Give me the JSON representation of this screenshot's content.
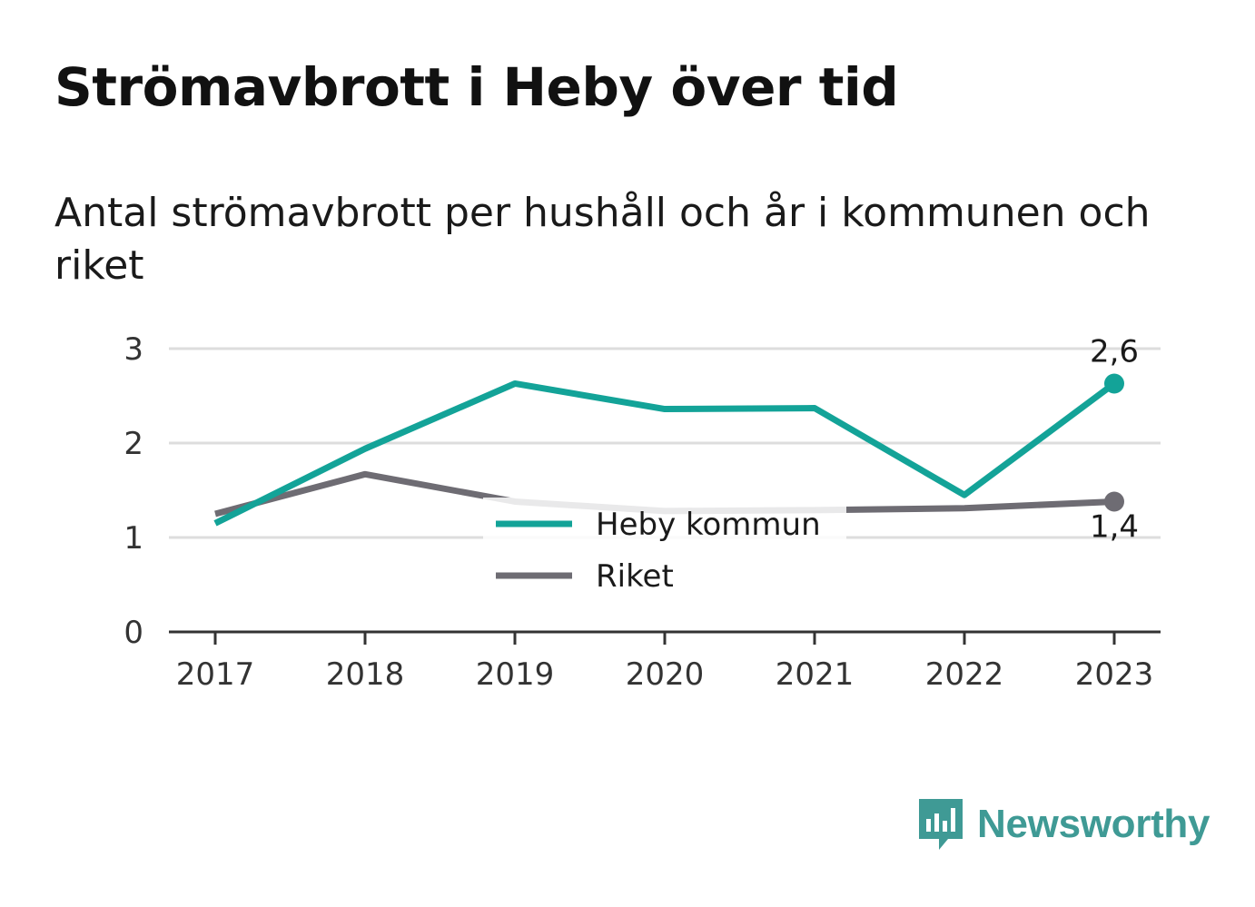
{
  "header": {
    "title": "Strömavbrott i Heby över tid",
    "subtitle": "Antal strömavbrott per hushåll och år i kommunen och riket"
  },
  "brand": {
    "name": "Newsworthy",
    "icon": "newsworthy-logo-icon",
    "color": "#3f9a95"
  },
  "chart_data": {
    "type": "line",
    "x": [
      "2017",
      "2018",
      "2019",
      "2020",
      "2021",
      "2022",
      "2023"
    ],
    "ylim": [
      0,
      3
    ],
    "yticks": [
      "0",
      "1",
      "2",
      "3"
    ],
    "grid": true,
    "legend": "inside-center",
    "series": [
      {
        "name": "Heby kommun",
        "color": "#13a398",
        "values": [
          1.15,
          1.94,
          2.63,
          2.36,
          2.37,
          1.45,
          2.63
        ],
        "end_label": "2,6"
      },
      {
        "name": "Riket",
        "color": "#6e6c73",
        "values": [
          1.25,
          1.67,
          1.38,
          1.28,
          1.29,
          1.31,
          1.38
        ],
        "end_label": "1,4"
      }
    ]
  }
}
